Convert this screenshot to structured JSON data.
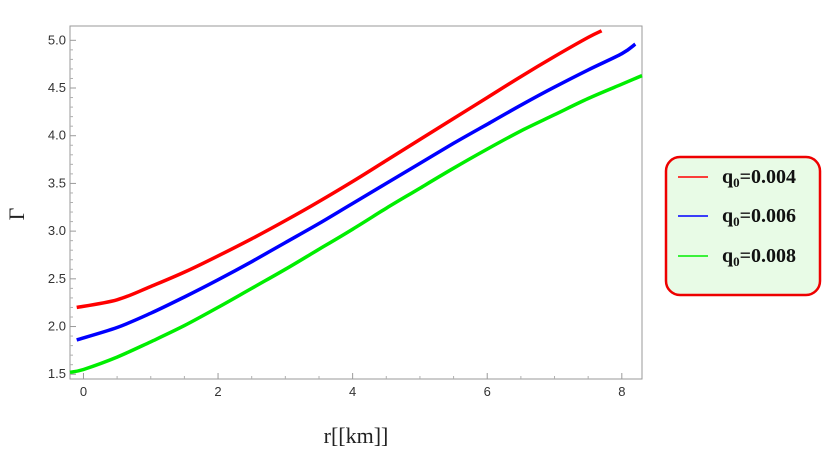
{
  "chart_data": {
    "type": "line",
    "xlabel": "r[[km]]",
    "ylabel": "Γ",
    "xlim": [
      -0.2,
      8.3
    ],
    "ylim": [
      1.45,
      5.15
    ],
    "x_ticks": [
      0,
      2,
      4,
      6,
      8
    ],
    "y_ticks": [
      1.5,
      2.0,
      2.5,
      3.0,
      3.5,
      4.0,
      4.5,
      5.0
    ],
    "x_tick_labels": [
      "0",
      "2",
      "4",
      "6",
      "8"
    ],
    "y_tick_labels": [
      "1.5",
      "2.0",
      "2.5",
      "3.0",
      "3.5",
      "4.0",
      "4.5",
      "5.0"
    ],
    "grid": false,
    "legend_position": "right",
    "series": [
      {
        "name_base": "q",
        "name_sub": "0",
        "name_value": "=0.004",
        "color": "#ff0000",
        "x": [
          -0.1,
          0.5,
          1.0,
          1.5,
          2.0,
          2.5,
          3.0,
          3.5,
          4.0,
          4.5,
          5.0,
          5.5,
          6.0,
          6.5,
          7.0,
          7.5,
          7.7
        ],
        "y": [
          2.2,
          2.28,
          2.42,
          2.57,
          2.74,
          2.92,
          3.11,
          3.31,
          3.52,
          3.74,
          3.96,
          4.18,
          4.4,
          4.62,
          4.83,
          5.03,
          5.1
        ]
      },
      {
        "name_base": "q",
        "name_sub": "0",
        "name_value": "=0.006",
        "color": "#0000ff",
        "x": [
          -0.1,
          0.5,
          1.0,
          1.5,
          2.0,
          2.5,
          3.0,
          3.5,
          4.0,
          4.5,
          5.0,
          5.5,
          6.0,
          6.5,
          7.0,
          7.5,
          8.0,
          8.2
        ],
        "y": [
          1.86,
          1.99,
          2.14,
          2.31,
          2.49,
          2.68,
          2.88,
          3.08,
          3.29,
          3.5,
          3.71,
          3.92,
          4.12,
          4.32,
          4.51,
          4.69,
          4.86,
          4.96
        ]
      },
      {
        "name_base": "q",
        "name_sub": "0",
        "name_value": "=0.008",
        "color": "#00ee00",
        "x": [
          -0.2,
          0.0,
          0.5,
          1.0,
          1.5,
          2.0,
          2.5,
          3.0,
          3.5,
          4.0,
          4.5,
          5.0,
          5.5,
          6.0,
          6.5,
          7.0,
          7.5,
          8.0,
          8.3
        ],
        "y": [
          1.52,
          1.55,
          1.68,
          1.84,
          2.01,
          2.2,
          2.4,
          2.6,
          2.81,
          3.02,
          3.24,
          3.45,
          3.66,
          3.86,
          4.05,
          4.22,
          4.39,
          4.54,
          4.63
        ]
      }
    ],
    "colors": {
      "legend_border": "#ee0000",
      "legend_fill": "#e8fbe6",
      "axis": "#999999"
    }
  }
}
